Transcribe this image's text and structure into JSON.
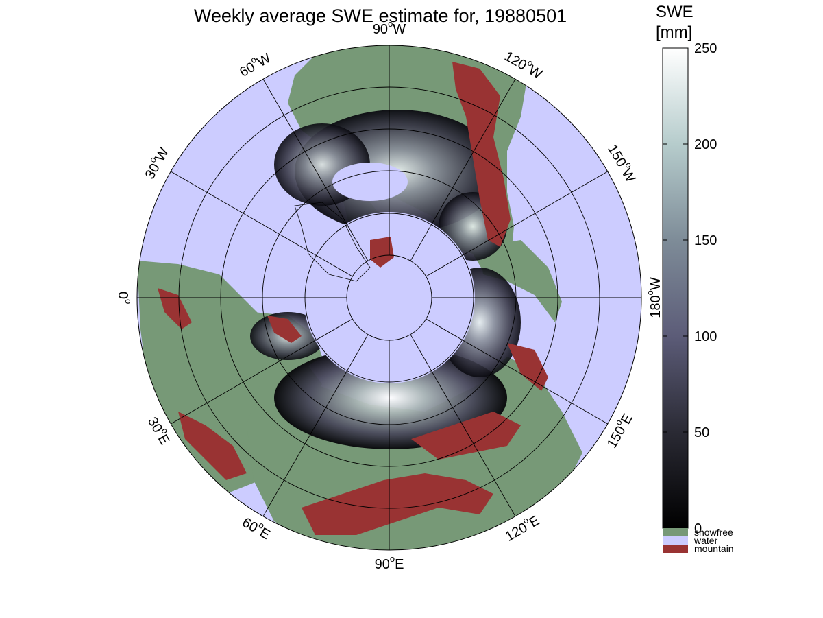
{
  "title": "Weekly average SWE estimate for, 19880501",
  "colors": {
    "water": "#ccccff",
    "snowfree": "#779977",
    "mountain": "#993333",
    "snow_low": "#000000",
    "snow_mid": "#5c5c78",
    "snow_high": "#ffffff"
  },
  "meridian_labels": [
    {
      "deg": "0",
      "dir": ""
    },
    {
      "deg": "30",
      "dir": "E"
    },
    {
      "deg": "60",
      "dir": "E"
    },
    {
      "deg": "90",
      "dir": "E"
    },
    {
      "deg": "120",
      "dir": "E"
    },
    {
      "deg": "150",
      "dir": "E"
    },
    {
      "deg": "180",
      "dir": "W"
    },
    {
      "deg": "150",
      "dir": "W"
    },
    {
      "deg": "120",
      "dir": "W"
    },
    {
      "deg": "90",
      "dir": "W"
    },
    {
      "deg": "60",
      "dir": "W"
    },
    {
      "deg": "30",
      "dir": "W"
    }
  ],
  "colorbar": {
    "title_line1": "SWE",
    "title_line2": "[mm]",
    "range": [
      0,
      250
    ],
    "ticks": [
      "0",
      "50",
      "100",
      "150",
      "200",
      "250"
    ],
    "categories": [
      "snowfree",
      "water",
      "mountain"
    ]
  }
}
